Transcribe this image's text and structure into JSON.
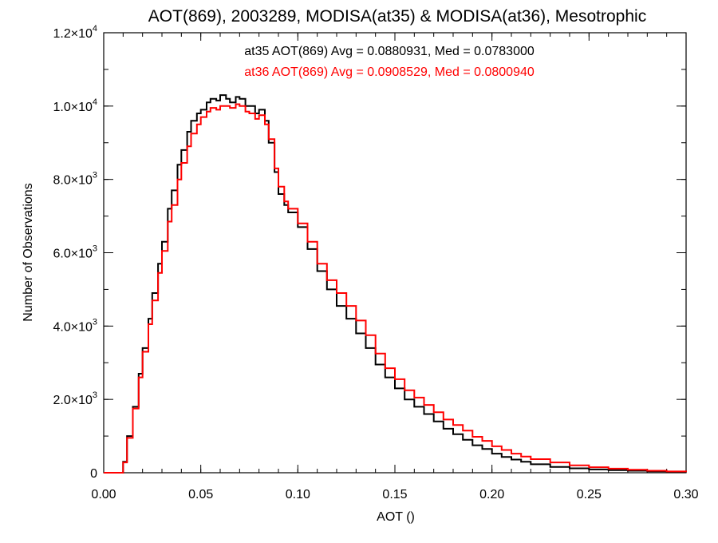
{
  "chart_data": {
    "type": "line",
    "title": "AOT(869), 2003289, MODISA(at35) & MODISA(at36), Mesotrophic",
    "xlabel": "AOT ()",
    "ylabel": "Number of Observations",
    "xlim": [
      0.0,
      0.3
    ],
    "ylim": [
      0,
      12000
    ],
    "x_ticks": [
      0.0,
      0.05,
      0.1,
      0.15,
      0.2,
      0.25,
      0.3
    ],
    "x_tick_labels": [
      "0.00",
      "0.05",
      "0.10",
      "0.15",
      "0.20",
      "0.25",
      "0.30"
    ],
    "y_ticks": [
      0,
      2000,
      4000,
      6000,
      8000,
      10000,
      12000
    ],
    "y_tick_labels": [
      {
        "mant": "0",
        "exp": ""
      },
      {
        "mant": "2.0×10",
        "exp": "3"
      },
      {
        "mant": "4.0×10",
        "exp": "3"
      },
      {
        "mant": "6.0×10",
        "exp": "3"
      },
      {
        "mant": "8.0×10",
        "exp": "3"
      },
      {
        "mant": "1.0×10",
        "exp": "4"
      },
      {
        "mant": "1.2×10",
        "exp": "4"
      }
    ],
    "grid": false,
    "legend": "top-center",
    "series": [
      {
        "name": "at35",
        "label": "at35 AOT(869) Avg = 0.0880931, Med = 0.0783000",
        "color": "#000000",
        "x": [
          -0.002,
          0.0,
          0.005,
          0.009,
          0.01,
          0.012,
          0.015,
          0.018,
          0.02,
          0.023,
          0.025,
          0.028,
          0.03,
          0.033,
          0.035,
          0.038,
          0.04,
          0.043,
          0.045,
          0.048,
          0.05,
          0.053,
          0.055,
          0.058,
          0.06,
          0.063,
          0.065,
          0.068,
          0.07,
          0.073,
          0.075,
          0.078,
          0.08,
          0.083,
          0.085,
          0.088,
          0.09,
          0.093,
          0.095,
          0.1,
          0.105,
          0.11,
          0.115,
          0.12,
          0.125,
          0.13,
          0.135,
          0.14,
          0.145,
          0.15,
          0.155,
          0.16,
          0.165,
          0.17,
          0.175,
          0.18,
          0.185,
          0.19,
          0.195,
          0.2,
          0.205,
          0.21,
          0.215,
          0.22,
          0.23,
          0.24,
          0.25,
          0.26,
          0.27,
          0.28,
          0.29,
          0.3
        ],
        "y": [
          0,
          0,
          0,
          0,
          300,
          1000,
          1800,
          2700,
          3400,
          4200,
          4900,
          5700,
          6300,
          7200,
          7700,
          8400,
          8800,
          9300,
          9600,
          9800,
          9900,
          10100,
          10200,
          10150,
          10300,
          10200,
          10100,
          10250,
          10200,
          10000,
          10000,
          9800,
          9900,
          9600,
          9000,
          8200,
          7600,
          7300,
          7100,
          6700,
          6100,
          5500,
          5000,
          4550,
          4200,
          3800,
          3400,
          2950,
          2600,
          2300,
          2000,
          1800,
          1600,
          1400,
          1200,
          1050,
          900,
          750,
          650,
          520,
          430,
          360,
          300,
          230,
          160,
          120,
          90,
          70,
          55,
          40,
          25,
          15
        ]
      },
      {
        "name": "at36",
        "label": "at36 AOT(869) Avg = 0.0908529, Med = 0.0800940",
        "color": "#ff0000",
        "x": [
          -0.002,
          0.0,
          0.005,
          0.009,
          0.01,
          0.012,
          0.015,
          0.018,
          0.02,
          0.023,
          0.025,
          0.028,
          0.03,
          0.033,
          0.035,
          0.038,
          0.04,
          0.043,
          0.045,
          0.048,
          0.05,
          0.053,
          0.055,
          0.058,
          0.06,
          0.063,
          0.065,
          0.068,
          0.07,
          0.073,
          0.075,
          0.078,
          0.08,
          0.083,
          0.085,
          0.088,
          0.09,
          0.093,
          0.095,
          0.1,
          0.105,
          0.11,
          0.115,
          0.12,
          0.125,
          0.13,
          0.135,
          0.14,
          0.145,
          0.15,
          0.155,
          0.16,
          0.165,
          0.17,
          0.175,
          0.18,
          0.185,
          0.19,
          0.195,
          0.2,
          0.205,
          0.21,
          0.215,
          0.22,
          0.23,
          0.24,
          0.25,
          0.26,
          0.27,
          0.28,
          0.29,
          0.3
        ],
        "y": [
          0,
          0,
          0,
          0,
          280,
          950,
          1750,
          2600,
          3300,
          4050,
          4700,
          5450,
          6050,
          6850,
          7300,
          8000,
          8450,
          8900,
          9250,
          9500,
          9700,
          9850,
          9950,
          9900,
          10000,
          10000,
          9950,
          10050,
          10000,
          9850,
          9800,
          9650,
          9750,
          9500,
          9100,
          8300,
          7800,
          7400,
          7200,
          6800,
          6300,
          5700,
          5250,
          4900,
          4550,
          4150,
          3750,
          3250,
          2850,
          2550,
          2250,
          2050,
          1850,
          1650,
          1450,
          1300,
          1150,
          980,
          870,
          720,
          620,
          520,
          440,
          370,
          280,
          200,
          150,
          110,
          80,
          55,
          35,
          20
        ]
      }
    ]
  }
}
